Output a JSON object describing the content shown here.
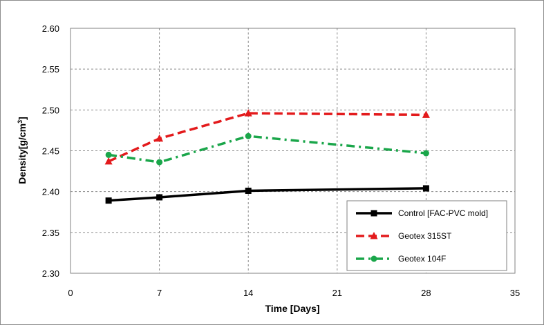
{
  "chart_data": {
    "type": "line",
    "title": "",
    "xlabel": "Time [Days]",
    "ylabel_main": "Density[g/cm",
    "ylabel_sup": "3",
    "ylabel_end": "]",
    "xlim": [
      0,
      35
    ],
    "ylim": [
      2.3,
      2.6
    ],
    "x_ticks": [
      0,
      7,
      14,
      21,
      28,
      35
    ],
    "x_tick_labels": [
      "0",
      "7",
      "14",
      "21",
      "28",
      "35"
    ],
    "y_ticks": [
      2.3,
      2.35,
      2.4,
      2.45,
      2.5,
      2.55,
      2.6
    ],
    "y_tick_labels": [
      "2.30",
      "2.35",
      "2.40",
      "2.45",
      "2.50",
      "2.55",
      "2.60"
    ],
    "grid": "dashed major gridlines on both axes",
    "legend_position": "bottom-right",
    "series": [
      {
        "name": "Control [FAC-PVC mold]",
        "color": "#000000",
        "style": "solid",
        "marker": "square",
        "x": [
          3,
          7,
          14,
          28
        ],
        "y": [
          2.389,
          2.393,
          2.401,
          2.404
        ]
      },
      {
        "name": "Geotex 315ST",
        "color": "#e31a1c",
        "style": "dashed",
        "marker": "triangle",
        "x": [
          3,
          7,
          14,
          28
        ],
        "y": [
          2.437,
          2.465,
          2.496,
          2.494
        ]
      },
      {
        "name": "Geotex 104F",
        "color": "#1aa64a",
        "style": "dashdot",
        "marker": "circle",
        "x": [
          3,
          7,
          14,
          28
        ],
        "y": [
          2.445,
          2.436,
          2.468,
          2.447
        ]
      }
    ]
  }
}
